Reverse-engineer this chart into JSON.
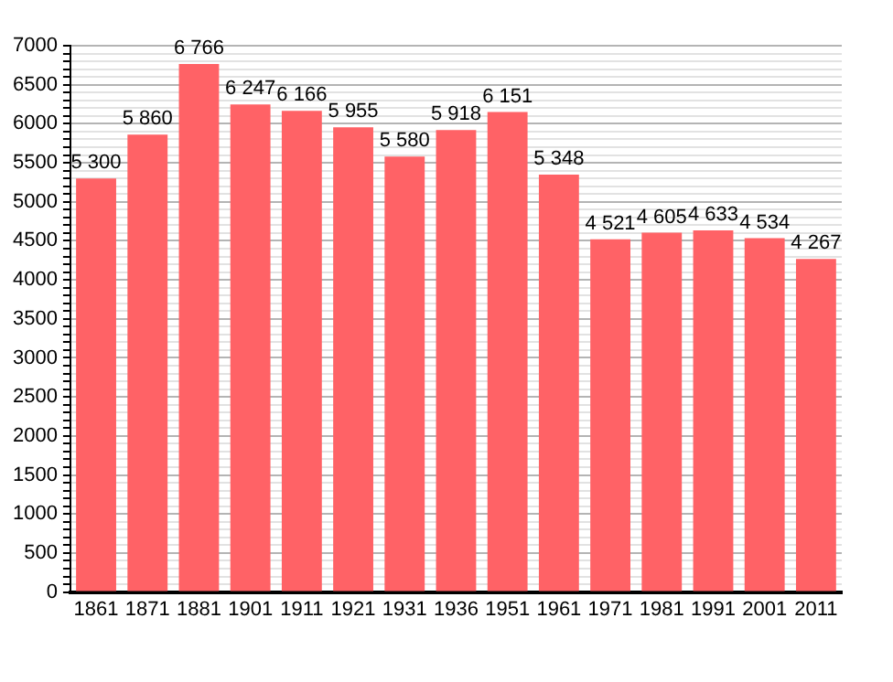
{
  "chart_data": {
    "type": "bar",
    "categories": [
      "1861",
      "1871",
      "1881",
      "1901",
      "1911",
      "1921",
      "1931",
      "1936",
      "1951",
      "1961",
      "1971",
      "1981",
      "1991",
      "2001",
      "2011"
    ],
    "values": [
      5300,
      5860,
      6766,
      6247,
      6166,
      5955,
      5580,
      5918,
      6151,
      5348,
      4521,
      4605,
      4633,
      4534,
      4267
    ],
    "value_labels": [
      "5 300",
      "5 860",
      "6 766",
      "6 247",
      "6 166",
      "5 955",
      "5 580",
      "5 918",
      "6 151",
      "5 348",
      "4 521",
      "4 605",
      "4 633",
      "4 534",
      "4 267"
    ],
    "color": "#ff6266",
    "ylim": [
      0,
      7000
    ],
    "yticks": [
      0,
      {
        "value": 100,
        "label": null
      },
      {
        "value": 200,
        "label": null
      },
      {
        "value": 300,
        "label": null
      },
      {
        "value": 400,
        "label": null
      },
      500,
      {
        "value": 600,
        "label": null
      },
      {
        "value": 700,
        "label": null
      },
      {
        "value": 800,
        "label": null
      },
      {
        "value": 900,
        "label": null
      },
      1000,
      {
        "value": 1100,
        "label": null
      },
      {
        "value": 1200,
        "label": null
      },
      {
        "value": 1300,
        "label": null
      },
      {
        "value": 1400,
        "label": null
      },
      1500,
      {
        "value": 1600,
        "label": null
      },
      {
        "value": 1700,
        "label": null
      },
      {
        "value": 1800,
        "label": null
      },
      {
        "value": 1900,
        "label": null
      },
      2000,
      {
        "value": 2100,
        "label": null
      },
      {
        "value": 2200,
        "label": null
      },
      {
        "value": 2300,
        "label": null
      },
      {
        "value": 2400,
        "label": null
      },
      2500,
      {
        "value": 2600,
        "label": null
      },
      {
        "value": 2700,
        "label": null
      },
      {
        "value": 2800,
        "label": null
      },
      {
        "value": 2900,
        "label": null
      },
      3000,
      {
        "value": 3100,
        "label": null
      },
      {
        "value": 3200,
        "label": null
      },
      {
        "value": 3300,
        "label": null
      },
      {
        "value": 3400,
        "label": null
      },
      3500,
      {
        "value": 3600,
        "label": null
      },
      {
        "value": 3700,
        "label": null
      },
      {
        "value": 3800,
        "label": null
      },
      {
        "value": 3900,
        "label": null
      },
      4000,
      {
        "value": 4100,
        "label": null
      },
      {
        "value": 4200,
        "label": null
      },
      {
        "value": 4300,
        "label": null
      },
      {
        "value": 4400,
        "label": null
      },
      4500,
      {
        "value": 4600,
        "label": null
      },
      {
        "value": 4700,
        "label": null
      },
      {
        "value": 4800,
        "label": null
      },
      {
        "value": 4900,
        "label": null
      },
      5000,
      {
        "value": 5100,
        "label": null
      },
      {
        "value": 5200,
        "label": null
      },
      {
        "value": 5300,
        "label": null
      },
      {
        "value": 5400,
        "label": null
      },
      5500,
      {
        "value": 5600,
        "label": null
      },
      {
        "value": 5700,
        "label": null
      },
      {
        "value": 5800,
        "label": null
      },
      {
        "value": 5900,
        "label": null
      },
      6000,
      {
        "value": 6100,
        "label": null
      },
      {
        "value": 6200,
        "label": null
      },
      {
        "value": 6300,
        "label": null
      },
      {
        "value": 6400,
        "label": null
      },
      6500,
      {
        "value": 6600,
        "label": null
      },
      {
        "value": 6700,
        "label": null
      },
      {
        "value": 6800,
        "label": null
      },
      {
        "value": 6900,
        "label": null
      },
      7000
    ],
    "grid": "y",
    "legend": false
  }
}
